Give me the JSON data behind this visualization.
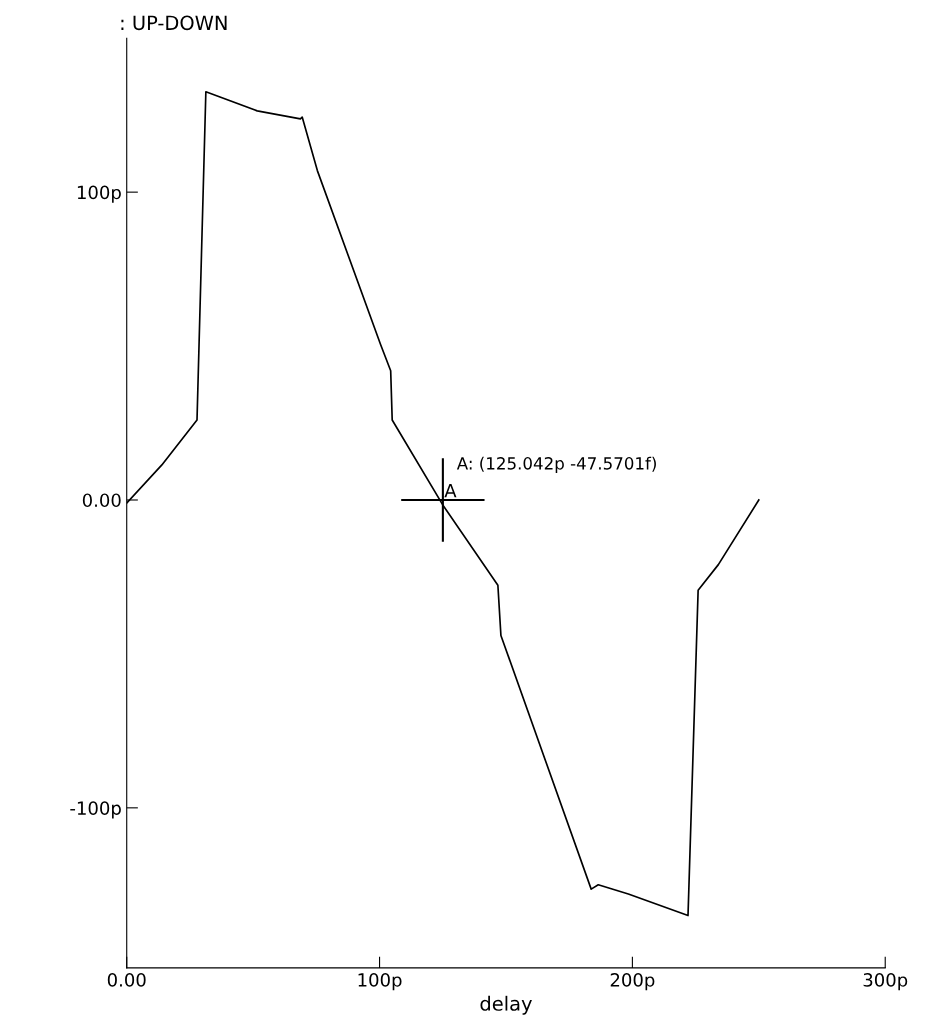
{
  "chart_data": {
    "type": "line",
    "title": ": UP-DOWN",
    "xlabel": "delay",
    "x": [
      0,
      13.9,
      27.8,
      31.3,
      51.6,
      68.7,
      69.4,
      75.4,
      100.4,
      104.4,
      105,
      125,
      146.8,
      148,
      183.7,
      186.5,
      198.4,
      222,
      226,
      234,
      250
    ],
    "series": [
      {
        "color": "#000000",
        "values": [
          -1,
          11.4,
          26,
          132.6,
          126.4,
          123.8,
          124.4,
          107,
          50.5,
          42,
          26,
          -1.6,
          -27.7,
          -44,
          -126.4,
          -125,
          -128,
          -135,
          -29.3,
          -21,
          0
        ]
      }
    ],
    "xlim": [
      0,
      300
    ],
    "ylim": [
      -152,
      150
    ],
    "xticks": [
      {
        "value": 0,
        "label": "0.00"
      },
      {
        "value": 100,
        "label": "100p"
      },
      {
        "value": 200,
        "label": "200p"
      },
      {
        "value": 300,
        "label": "300p"
      }
    ],
    "yticks": [
      {
        "value": -100,
        "label": "-100p"
      },
      {
        "value": 0,
        "label": "0.00"
      },
      {
        "value": 100,
        "label": "100p"
      }
    ],
    "annotations": [
      {
        "text": "A: (125.042p -47.5701f)",
        "x": 125.042,
        "y": 0
      },
      {
        "text": "A",
        "x": 125.042,
        "y": 0
      }
    ],
    "grid": false,
    "legend": false,
    "marker": "none",
    "line_style": "solid"
  }
}
